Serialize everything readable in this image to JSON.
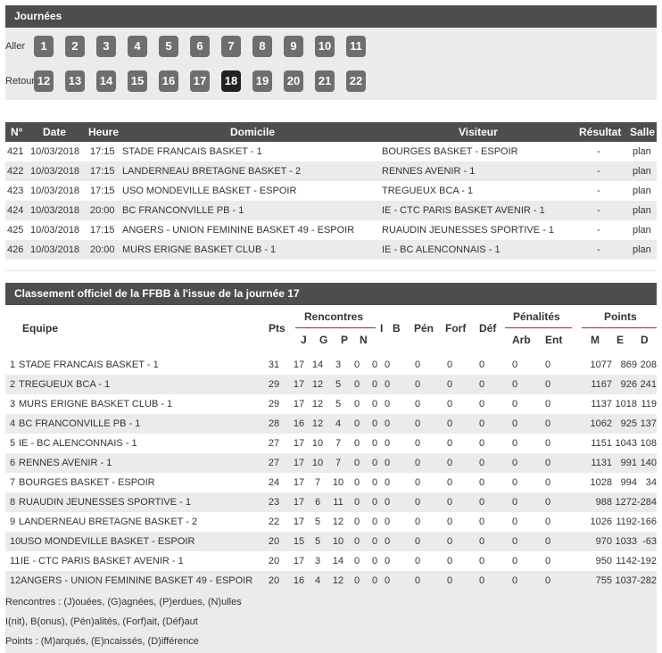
{
  "journees": {
    "title": "Journées",
    "aller_label": "Aller",
    "retour_label": "Retour",
    "aller": [
      "1",
      "2",
      "3",
      "4",
      "5",
      "6",
      "7",
      "8",
      "9",
      "10",
      "11"
    ],
    "retour": [
      "12",
      "13",
      "14",
      "15",
      "16",
      "17",
      "18",
      "19",
      "20",
      "21",
      "22"
    ],
    "active": "18"
  },
  "matches": {
    "headers": {
      "num": "N°",
      "date": "Date",
      "heure": "Heure",
      "domicile": "Domicile",
      "visiteur": "Visiteur",
      "resultat": "Résultat",
      "salle": "Salle"
    },
    "rows": [
      {
        "num": "421",
        "date": "10/03/2018",
        "heure": "17:15",
        "domicile": "STADE FRANCAIS BASKET - 1",
        "visiteur": "BOURGES BASKET - ESPOIR",
        "resultat": "-",
        "salle": "plan"
      },
      {
        "num": "422",
        "date": "10/03/2018",
        "heure": "17:15",
        "domicile": "LANDERNEAU BRETAGNE BASKET - 2",
        "visiteur": "RENNES AVENIR - 1",
        "resultat": "-",
        "salle": "plan"
      },
      {
        "num": "423",
        "date": "10/03/2018",
        "heure": "17:15",
        "domicile": "USO MONDEVILLE BASKET - ESPOIR",
        "visiteur": "TREGUEUX BCA - 1",
        "resultat": "-",
        "salle": "plan"
      },
      {
        "num": "424",
        "date": "10/03/2018",
        "heure": "20:00",
        "domicile": "BC FRANCONVILLE PB - 1",
        "visiteur": "IE - CTC PARIS BASKET AVENIR - 1",
        "resultat": "-",
        "salle": "plan"
      },
      {
        "num": "425",
        "date": "10/03/2018",
        "heure": "17:15",
        "domicile": "ANGERS - UNION FEMININE BASKET 49 - ESPOIR",
        "visiteur": "RUAUDIN JEUNESSES SPORTIVE - 1",
        "resultat": "-",
        "salle": "plan"
      },
      {
        "num": "426",
        "date": "10/03/2018",
        "heure": "20:00",
        "domicile": "MURS ERIGNE BASKET CLUB - 1",
        "visiteur": "IE - BC ALENCONNAIS - 1",
        "resultat": "-",
        "salle": "plan"
      }
    ]
  },
  "classement": {
    "title": "Classement officiel de la FFBB à l'issue de la journée 17",
    "headers": {
      "equipe": "Equipe",
      "pts": "Pts",
      "rencontres": "Rencontres",
      "j": "J",
      "g": "G",
      "p": "P",
      "n": "N",
      "i": "I",
      "b": "B",
      "pen": "Pén",
      "forf": "Forf",
      "def": "Déf",
      "penalites": "Pénalités",
      "arb": "Arb",
      "ent": "Ent",
      "points": "Points",
      "m": "M",
      "e": "E",
      "d": "D"
    },
    "rows": [
      {
        "rank": "1",
        "equipe": "STADE FRANCAIS BASKET - 1",
        "pts": "31",
        "j": "17",
        "g": "14",
        "p": "3",
        "n": "0",
        "i": "0",
        "b": "0",
        "pen": "0",
        "forf": "0",
        "def": "0",
        "arb": "0",
        "ent": "0",
        "m": "1077",
        "e": "869",
        "d": "208"
      },
      {
        "rank": "2",
        "equipe": "TREGUEUX BCA - 1",
        "pts": "29",
        "j": "17",
        "g": "12",
        "p": "5",
        "n": "0",
        "i": "0",
        "b": "0",
        "pen": "0",
        "forf": "0",
        "def": "0",
        "arb": "0",
        "ent": "0",
        "m": "1167",
        "e": "926",
        "d": "241"
      },
      {
        "rank": "3",
        "equipe": "MURS ERIGNE BASKET CLUB - 1",
        "pts": "29",
        "j": "17",
        "g": "12",
        "p": "5",
        "n": "0",
        "i": "0",
        "b": "0",
        "pen": "0",
        "forf": "0",
        "def": "0",
        "arb": "0",
        "ent": "0",
        "m": "1137",
        "e": "1018",
        "d": "119"
      },
      {
        "rank": "4",
        "equipe": "BC FRANCONVILLE PB - 1",
        "pts": "28",
        "j": "16",
        "g": "12",
        "p": "4",
        "n": "0",
        "i": "0",
        "b": "0",
        "pen": "0",
        "forf": "0",
        "def": "0",
        "arb": "0",
        "ent": "0",
        "m": "1062",
        "e": "925",
        "d": "137"
      },
      {
        "rank": "5",
        "equipe": "IE - BC ALENCONNAIS - 1",
        "pts": "27",
        "j": "17",
        "g": "10",
        "p": "7",
        "n": "0",
        "i": "0",
        "b": "0",
        "pen": "0",
        "forf": "0",
        "def": "0",
        "arb": "0",
        "ent": "0",
        "m": "1151",
        "e": "1043",
        "d": "108"
      },
      {
        "rank": "6",
        "equipe": "RENNES AVENIR - 1",
        "pts": "27",
        "j": "17",
        "g": "10",
        "p": "7",
        "n": "0",
        "i": "0",
        "b": "0",
        "pen": "0",
        "forf": "0",
        "def": "0",
        "arb": "0",
        "ent": "0",
        "m": "1131",
        "e": "991",
        "d": "140"
      },
      {
        "rank": "7",
        "equipe": "BOURGES BASKET - ESPOIR",
        "pts": "24",
        "j": "17",
        "g": "7",
        "p": "10",
        "n": "0",
        "i": "0",
        "b": "0",
        "pen": "0",
        "forf": "0",
        "def": "0",
        "arb": "0",
        "ent": "0",
        "m": "1028",
        "e": "994",
        "d": "34"
      },
      {
        "rank": "8",
        "equipe": "RUAUDIN JEUNESSES SPORTIVE - 1",
        "pts": "23",
        "j": "17",
        "g": "6",
        "p": "11",
        "n": "0",
        "i": "0",
        "b": "0",
        "pen": "0",
        "forf": "0",
        "def": "0",
        "arb": "0",
        "ent": "0",
        "m": "988",
        "e": "1272",
        "d": "-284"
      },
      {
        "rank": "9",
        "equipe": "LANDERNEAU BRETAGNE BASKET - 2",
        "pts": "22",
        "j": "17",
        "g": "5",
        "p": "12",
        "n": "0",
        "i": "0",
        "b": "0",
        "pen": "0",
        "forf": "0",
        "def": "0",
        "arb": "0",
        "ent": "0",
        "m": "1026",
        "e": "1192",
        "d": "-166"
      },
      {
        "rank": "10",
        "equipe": "USO MONDEVILLE BASKET - ESPOIR",
        "pts": "20",
        "j": "15",
        "g": "5",
        "p": "10",
        "n": "0",
        "i": "0",
        "b": "0",
        "pen": "0",
        "forf": "0",
        "def": "0",
        "arb": "0",
        "ent": "0",
        "m": "970",
        "e": "1033",
        "d": "-63"
      },
      {
        "rank": "11",
        "equipe": "IE - CTC PARIS BASKET AVENIR - 1",
        "pts": "20",
        "j": "17",
        "g": "3",
        "p": "14",
        "n": "0",
        "i": "0",
        "b": "0",
        "pen": "0",
        "forf": "0",
        "def": "0",
        "arb": "0",
        "ent": "0",
        "m": "950",
        "e": "1142",
        "d": "-192"
      },
      {
        "rank": "12",
        "equipe": "ANGERS - UNION FEMININE BASKET 49 - ESPOIR",
        "pts": "20",
        "j": "16",
        "g": "4",
        "p": "12",
        "n": "0",
        "i": "0",
        "b": "0",
        "pen": "0",
        "forf": "0",
        "def": "0",
        "arb": "0",
        "ent": "0",
        "m": "755",
        "e": "1037",
        "d": "-282"
      }
    ],
    "legend": [
      "Rencontres : (J)ouées, (G)agnées, (P)erdues, (N)ulles",
      "I(nit), B(onus), (Pén)alités, (Forf)ait, (Déf)aut",
      "Points : (M)arqués, (E)ncaissés, (D)ifférence"
    ]
  },
  "colors": {
    "header_bg": "#4d4d4d",
    "row_alt_bg": "#ebebeb",
    "button_bg": "#6e6e6e",
    "button_active_bg": "#222222",
    "accent_line": "#b22222"
  }
}
